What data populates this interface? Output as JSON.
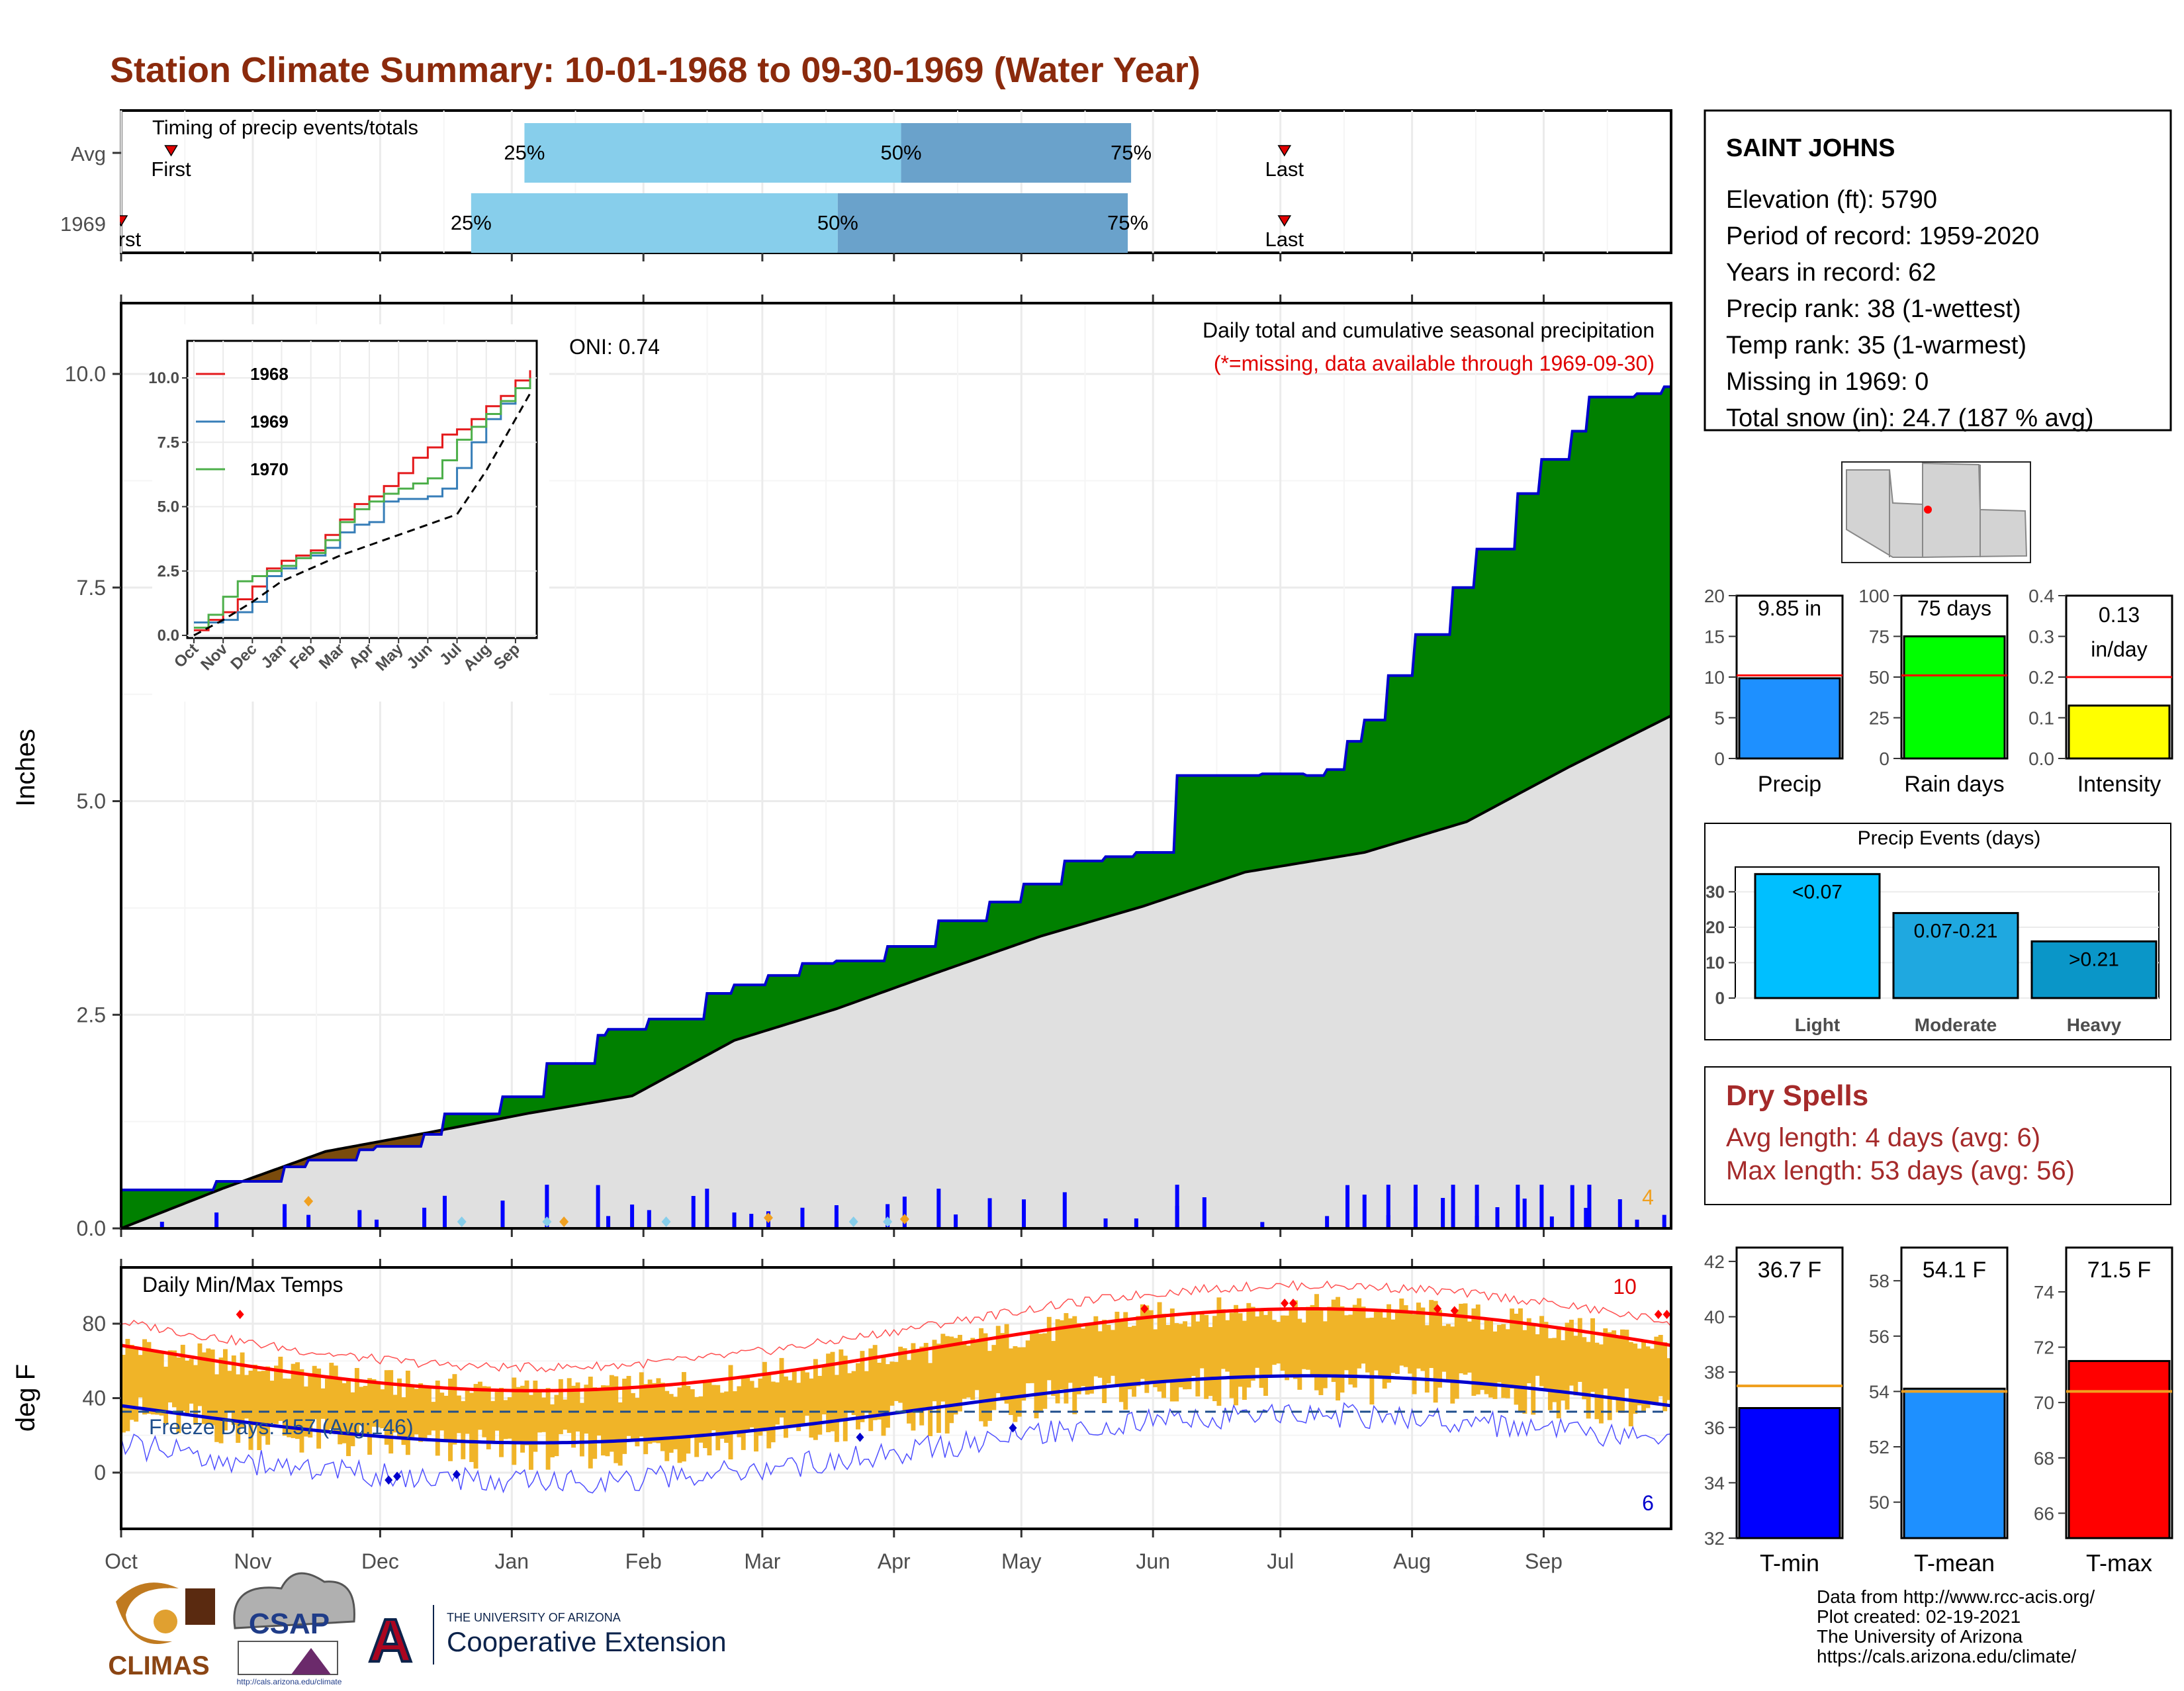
{
  "title": "Station Climate Summary: 10-01-1968 to 09-30-1969 (Water Year)",
  "colors": {
    "title": "#8b2a0c",
    "light_bar": "#87ceeb",
    "dark_bar": "#6aa2cb",
    "cum_fill": "#008000",
    "deficit_fill": "#7a4b0c",
    "normal_fill": "#e0e0e0",
    "cum_line": "#0000cd",
    "daily_bar": "#0000ff",
    "temp_bar": "#f0b428",
    "tmax_line": "#ff0000",
    "tmin_line": "#0000cd",
    "dry_spell_text": "#a52a2a"
  },
  "months": [
    "Oct",
    "Nov",
    "Dec",
    "Jan",
    "Feb",
    "Mar",
    "Apr",
    "May",
    "Jun",
    "Jul",
    "Aug",
    "Sep"
  ],
  "timing": {
    "title": "Timing of precip events/totals",
    "rows": [
      {
        "label": "Avg",
        "first": 15,
        "q25": 121,
        "q50": 234,
        "q75": 303,
        "last": 349,
        "first_label": "First",
        "last_label": "Last"
      },
      {
        "label": "1969",
        "first": 0,
        "q25": 105,
        "q50": 215,
        "q75": 302,
        "last": 349,
        "first_label": "First",
        "last_label": "Last"
      }
    ],
    "pct_labels": [
      "25%",
      "50%",
      "75%"
    ]
  },
  "station": {
    "name": "SAINT JOHNS",
    "lines": [
      "Elevation (ft): 5790",
      "Period of record: 1959-2020",
      "Years in record: 62",
      "Precip rank: 38 (1-wettest)",
      "Temp rank: 35 (1-warmest)",
      "Missing in 1969: 0",
      "Total snow (in): 24.7 (187 % avg)"
    ]
  },
  "precip_panel": {
    "ylabel": "Inches",
    "oni": "ONI: 0.74",
    "subtitle": "Daily total and cumulative seasonal precipitation",
    "missing_note": "(*=missing, data available through 1969-09-30)",
    "corner_count": "4",
    "y_ticks": [
      "0.0",
      "2.5",
      "5.0",
      "7.5",
      "10.0"
    ]
  },
  "chart_data": [
    {
      "type": "area",
      "name": "cumulative-precip",
      "x_unit": "day of water year",
      "series": [
        {
          "points": [
            [
              0,
              0.45
            ],
            [
              28,
              0.55
            ],
            [
              35,
              0.55
            ],
            [
              48,
              0.72
            ],
            [
              55,
              0.8
            ],
            [
              70,
              0.92
            ],
            [
              75,
              0.96
            ],
            [
              89,
              1.1
            ],
            [
              95,
              1.34
            ],
            [
              112,
              1.54
            ],
            [
              125,
              1.93
            ],
            [
              140,
              2.26
            ],
            [
              143,
              2.33
            ],
            [
              155,
              2.45
            ],
            [
              172,
              2.75
            ],
            [
              180,
              2.85
            ],
            [
              190,
              2.96
            ],
            [
              200,
              3.1
            ],
            [
              210,
              3.13
            ],
            [
              225,
              3.3
            ],
            [
              240,
              3.6
            ],
            [
              255,
              3.82
            ],
            [
              265,
              4.03
            ],
            [
              277,
              4.3
            ],
            [
              289,
              4.35
            ],
            [
              298,
              4.4
            ],
            [
              310,
              5.3
            ],
            [
              325,
              5.3
            ],
            [
              335,
              5.32
            ],
            [
              348,
              5.3
            ],
            [
              354,
              5.37
            ],
            [
              360,
              5.7
            ],
            [
              365,
              5.95
            ],
            [
              372,
              6.47
            ],
            [
              380,
              6.95
            ],
            [
              391,
              7.5
            ],
            [
              398,
              7.95
            ],
            [
              410,
              8.6
            ],
            [
              417,
              9.0
            ],
            [
              426,
              9.33
            ],
            [
              431,
              9.73
            ],
            [
              445,
              9.77
            ],
            [
              453,
              9.85
            ],
            [
              455,
              9.85
            ]
          ]
        },
        {
          "name": "normal",
          "points": [
            [
              0,
              0
            ],
            [
              30,
              0.47
            ],
            [
              60,
              0.9
            ],
            [
              90,
              1.12
            ],
            [
              120,
              1.35
            ],
            [
              150,
              1.55
            ],
            [
              180,
              2.2
            ],
            [
              210,
              2.57
            ],
            [
              240,
              3.0
            ],
            [
              270,
              3.42
            ],
            [
              300,
              3.77
            ],
            [
              330,
              4.17
            ],
            [
              365,
              4.4
            ],
            [
              395,
              4.76
            ],
            [
              425,
              5.4
            ],
            [
              455,
              6.0
            ],
            [
              485,
              7.72
            ],
            [
              515,
              9.0
            ],
            [
              545,
              9.45
            ]
          ]
        }
      ]
    },
    {
      "type": "bar",
      "name": "daily-precip",
      "values_note": "spikes near days 5, 55, 70, 95, 112, 135, 163, 200, 225, 240, 270, 300, 318, 330, 340, 358, 363, 372, 390, 400, 410, 425, 440, 450"
    },
    {
      "type": "line",
      "name": "inset-cumulative",
      "xlabels": [
        "Oct",
        "Nov",
        "Dec",
        "Jan",
        "Feb",
        "Mar",
        "Apr",
        "May",
        "Jun",
        "Jul",
        "Aug",
        "Sep"
      ],
      "y_ticks": [
        "0.0",
        "2.5",
        "5.0",
        "7.5",
        "10.0"
      ],
      "series": [
        {
          "name": "1968",
          "color": "#e41a1c",
          "points": [
            [
              0,
              0.2
            ],
            [
              1,
              0.6
            ],
            [
              2,
              0.9
            ],
            [
              3,
              1.4
            ],
            [
              4,
              1.9
            ],
            [
              5,
              2.6
            ],
            [
              6,
              2.9
            ],
            [
              7,
              3.1
            ],
            [
              8,
              3.3
            ],
            [
              9,
              3.9
            ],
            [
              10,
              4.5
            ],
            [
              11,
              5.1
            ],
            [
              12,
              5.4
            ],
            [
              13,
              5.8
            ],
            [
              14,
              6.3
            ],
            [
              15,
              6.9
            ],
            [
              16,
              7.3
            ],
            [
              17,
              7.8
            ],
            [
              18,
              8.0
            ],
            [
              19,
              8.4
            ],
            [
              20,
              8.9
            ],
            [
              21,
              9.3
            ],
            [
              22,
              9.9
            ],
            [
              23,
              10.3
            ]
          ]
        },
        {
          "name": "1969",
          "color": "#377eb8",
          "points": [
            [
              0,
              0.5
            ],
            [
              1,
              0.5
            ],
            [
              2,
              0.6
            ],
            [
              3,
              0.9
            ],
            [
              4,
              1.3
            ],
            [
              5,
              2.3
            ],
            [
              6,
              2.6
            ],
            [
              7,
              3.0
            ],
            [
              8,
              3.1
            ],
            [
              9,
              3.4
            ],
            [
              10,
              4.0
            ],
            [
              11,
              4.3
            ],
            [
              12,
              4.4
            ],
            [
              13,
              5.2
            ],
            [
              14,
              5.3
            ],
            [
              15,
              5.3
            ],
            [
              16,
              5.4
            ],
            [
              17,
              5.7
            ],
            [
              18,
              6.5
            ],
            [
              19,
              7.5
            ],
            [
              20,
              8.4
            ],
            [
              21,
              9.0
            ],
            [
              22,
              9.6
            ],
            [
              23,
              9.85
            ]
          ]
        },
        {
          "name": "1970",
          "color": "#4daf4a",
          "points": [
            [
              0,
              0.3
            ],
            [
              1,
              0.8
            ],
            [
              2,
              1.5
            ],
            [
              3,
              2.1
            ],
            [
              4,
              2.3
            ],
            [
              5,
              2.5
            ],
            [
              6,
              2.7
            ],
            [
              7,
              3.0
            ],
            [
              8,
              3.2
            ],
            [
              9,
              3.7
            ],
            [
              10,
              4.4
            ],
            [
              11,
              4.9
            ],
            [
              12,
              5.2
            ],
            [
              13,
              5.5
            ],
            [
              14,
              5.7
            ],
            [
              15,
              5.9
            ],
            [
              16,
              6.1
            ],
            [
              17,
              6.8
            ],
            [
              18,
              7.6
            ],
            [
              19,
              8.1
            ],
            [
              20,
              8.6
            ],
            [
              21,
              9.1
            ],
            [
              22,
              9.6
            ],
            [
              23,
              10.0
            ]
          ]
        },
        {
          "name": "normal",
          "color": "#000000",
          "points": [
            [
              0,
              0.0
            ],
            [
              2,
              0.6
            ],
            [
              4,
              1.3
            ],
            [
              6,
              2.1
            ],
            [
              8,
              2.6
            ],
            [
              10,
              3.1
            ],
            [
              12,
              3.5
            ],
            [
              14,
              3.9
            ],
            [
              16,
              4.3
            ],
            [
              18,
              4.7
            ],
            [
              20,
              6.4
            ],
            [
              22,
              8.4
            ],
            [
              23,
              9.4
            ]
          ]
        }
      ]
    },
    {
      "type": "bar",
      "name": "precip-total",
      "categories": [
        "Precip"
      ],
      "values": [
        9.85
      ],
      "normal": 10.2,
      "ylim": [
        0,
        20
      ],
      "y_ticks": [
        "0",
        "5",
        "10",
        "15",
        "20"
      ]
    },
    {
      "type": "bar",
      "name": "rain-days",
      "categories": [
        "Rain days"
      ],
      "values": [
        75
      ],
      "normal": 51,
      "ylim": [
        0,
        100
      ],
      "y_ticks": [
        "0",
        "25",
        "50",
        "75",
        "100"
      ]
    },
    {
      "type": "bar",
      "name": "intensity",
      "categories": [
        "Intensity"
      ],
      "values": [
        0.13
      ],
      "normal": 0.2,
      "ylim": [
        0,
        0.4
      ],
      "y_ticks": [
        "0.0",
        "0.1",
        "0.2",
        "0.3",
        "0.4"
      ]
    },
    {
      "type": "bar",
      "name": "precip-events",
      "title": "Precip Events (days)",
      "categories": [
        "Light",
        "Moderate",
        "Heavy"
      ],
      "bar_labels": [
        "<0.07",
        "0.07-0.21",
        ">0.21"
      ],
      "values": [
        35,
        24,
        16
      ],
      "ylim": [
        0,
        35
      ],
      "y_ticks": [
        "0",
        "10",
        "20",
        "30"
      ]
    },
    {
      "type": "bar",
      "name": "temp-summary",
      "categories": [
        "T-min",
        "T-mean",
        "T-max"
      ],
      "values": [
        36.7,
        54.1,
        71.5
      ],
      "normals": [
        37.5,
        54.0,
        70.4
      ],
      "value_labels": [
        "36.7 F",
        "54.1 F",
        "71.5 F"
      ],
      "ranges": [
        [
          32,
          42.5
        ],
        [
          48.7,
          59.2
        ],
        [
          65.1,
          75.6
        ]
      ],
      "y_ticks": [
        [
          "32",
          "34",
          "36",
          "38",
          "40",
          "42"
        ],
        [
          "50",
          "52",
          "54",
          "56",
          "58"
        ],
        [
          "66",
          "68",
          "70",
          "72",
          "74"
        ]
      ]
    }
  ],
  "rain_cards": {
    "precip_label": "9.85 in",
    "raindays_label": "75 days",
    "intensity_label_1": "0.13",
    "intensity_label_2": "in/day"
  },
  "dry_spells": {
    "title": "Dry Spells",
    "avg": "Avg length: 4 days (avg: 6)",
    "max": "Max length: 53 days (avg: 56)"
  },
  "temp_panel": {
    "title": "Daily Min/Max Temps",
    "ylabel": "deg F",
    "freeze": "Freeze Days: 157 (Avg:146)",
    "count_hot": "10",
    "count_cold": "6",
    "y_ticks": [
      "0",
      "40",
      "80"
    ]
  },
  "footer": {
    "lines": [
      "Data from http://www.rcc-acis.org/",
      "Plot created: 02-19-2021",
      "The University of Arizona",
      "https://cals.arizona.edu/climate/"
    ],
    "climas": "CLIMAS",
    "csap": "CSAP",
    "csap_url": "http://cals.arizona.edu/climate",
    "ua_small": "THE UNIVERSITY OF ARIZONA",
    "coop": "Cooperative Extension",
    "ua_letter": "A"
  }
}
